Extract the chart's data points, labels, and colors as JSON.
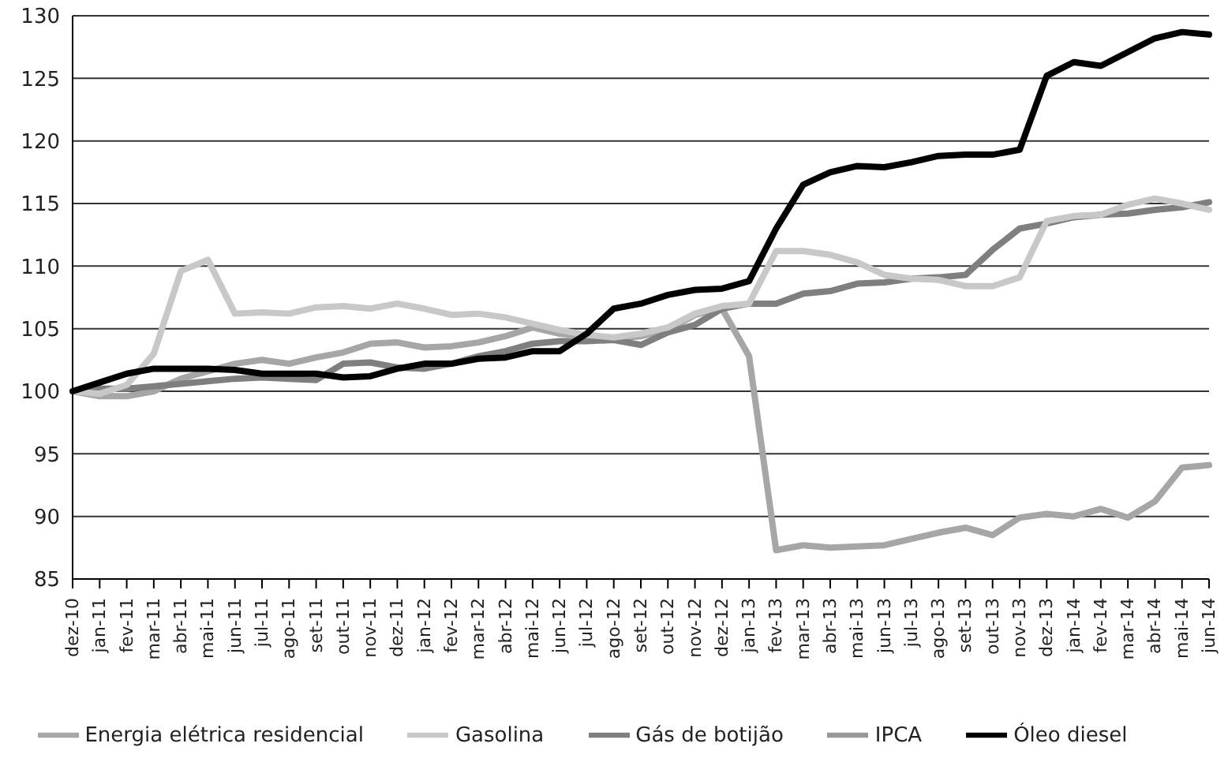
{
  "chart_data": {
    "type": "line",
    "categories": [
      "dez-10",
      "jan-11",
      "fev-11",
      "mar-11",
      "abr-11",
      "mai-11",
      "jun-11",
      "jul-11",
      "ago-11",
      "set-11",
      "out-11",
      "nov-11",
      "dez-11",
      "jan-12",
      "fev-12",
      "mar-12",
      "abr-12",
      "mai-12",
      "jun-12",
      "jul-12",
      "ago-12",
      "set-12",
      "out-12",
      "nov-12",
      "dez-12",
      "jan-13",
      "fev-13",
      "mar-13",
      "abr-13",
      "mai-13",
      "jun-13",
      "jul-13",
      "ago-13",
      "set-13",
      "out-13",
      "nov-13",
      "dez-13",
      "jan-14",
      "fev-14",
      "mar-14",
      "abr-14",
      "mai-14",
      "jun-14"
    ],
    "series": [
      {
        "name": "Energia elétrica residencial",
        "color": "#a6a6a6",
        "values": [
          100,
          99.6,
          99.6,
          100.0,
          101.0,
          101.6,
          102.2,
          102.5,
          102.2,
          102.7,
          103.1,
          103.8,
          103.9,
          103.5,
          103.6,
          103.9,
          104.4,
          105.1,
          104.6,
          104.4,
          104.2,
          104.4,
          104.9,
          106.1,
          106.6,
          102.8,
          87.3,
          87.7,
          87.5,
          87.6,
          87.7,
          88.2,
          88.7,
          89.1,
          88.5,
          89.9,
          90.2,
          90.0,
          90.6,
          89.9,
          91.2,
          93.9,
          94.1
        ]
      },
      {
        "name": "Gás de botijão",
        "color": "#7f7f7f",
        "values": [
          100,
          100.2,
          100.2,
          100.4,
          100.6,
          100.8,
          101.0,
          101.1,
          101.0,
          100.9,
          102.2,
          102.3,
          101.9,
          101.8,
          102.2,
          102.8,
          103.2,
          103.8,
          104.0,
          104.0,
          104.1,
          103.7,
          104.7,
          105.3,
          106.6,
          107.0,
          107.0,
          107.8,
          108.0,
          108.6,
          108.7,
          109.0,
          109.1,
          109.3,
          111.3,
          113.0,
          113.4,
          113.9,
          114.1,
          114.2,
          114.5,
          114.7,
          115.1
        ]
      },
      {
        "name": "Gasolina",
        "color": "#c8c8c8",
        "values": [
          100,
          99.8,
          100.5,
          103,
          109.6,
          110.5,
          106.2,
          106.3,
          106.2,
          106.7,
          106.8,
          106.6,
          107.0,
          106.6,
          106.1,
          106.2,
          105.9,
          105.4,
          104.9,
          104.5,
          104.3,
          104.6,
          105.1,
          106.2,
          106.8,
          107.0,
          111.2,
          111.2,
          110.9,
          110.3,
          109.3,
          109.0,
          108.9,
          108.4,
          108.4,
          109.1,
          113.6,
          114.0,
          114.1,
          114.9,
          115.4,
          115.0,
          114.5
        ]
      },
      {
        "name": "Óleo diesel",
        "color": "#000000",
        "values": [
          100,
          100.7,
          101.4,
          101.8,
          101.8,
          101.8,
          101.7,
          101.4,
          101.4,
          101.4,
          101.1,
          101.2,
          101.8,
          102.2,
          102.2,
          102.6,
          102.7,
          103.2,
          103.2,
          104.6,
          106.6,
          107.0,
          107.7,
          108.1,
          108.2,
          108.8,
          113.0,
          116.5,
          117.5,
          118.0,
          117.9,
          118.3,
          118.8,
          118.9,
          118.9,
          119.3,
          125.2,
          126.3,
          126.0,
          127.1,
          128.2,
          128.7,
          128.5
        ]
      },
      {
        "name": "IPCA",
        "color": "#999999",
        "values": [
          null,
          null,
          null,
          null,
          null,
          null,
          null,
          null,
          null,
          null,
          null,
          null,
          null,
          null,
          null,
          null,
          null,
          null,
          null,
          null,
          null,
          null,
          null,
          null,
          null,
          null,
          null,
          null,
          null,
          null,
          null,
          null,
          null,
          null,
          null,
          null,
          null,
          null,
          null,
          null,
          null,
          null,
          null
        ]
      }
    ],
    "ylim": [
      85,
      130
    ],
    "yticks": [
      85,
      90,
      95,
      100,
      105,
      110,
      115,
      120,
      125,
      130
    ],
    "grid": "y",
    "legend": "bottom",
    "marker": "none",
    "line_style": "solid"
  }
}
